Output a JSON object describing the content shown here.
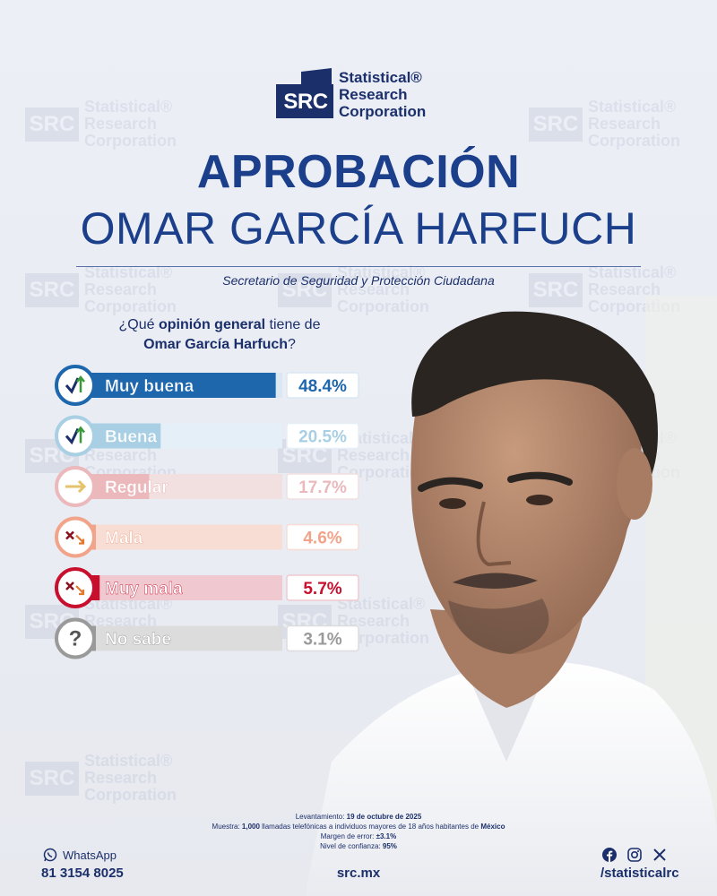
{
  "brand": {
    "mark": "SRC",
    "name_lines": [
      "Statistical®",
      "Research",
      "Corporation"
    ]
  },
  "title": "APROBACIÓN",
  "person_name": "OMAR GARCÍA HARFUCH",
  "subtitle": "Secretario de Seguridad y Protección Ciudadana",
  "question": {
    "pre": "¿Qué ",
    "bold": "opinión general",
    "mid": " tiene de",
    "name": "Omar García Harfuch",
    "post": "?"
  },
  "colors": {
    "navy": "#1b2f6b",
    "title_blue": "#1b3f8a"
  },
  "chart_data": {
    "type": "bar",
    "orientation": "horizontal",
    "title": "¿Qué opinión general tiene de Omar García Harfuch?",
    "categories": [
      "Muy buena",
      "Buena",
      "Regular",
      "Mala",
      "Muy mala",
      "No sabe"
    ],
    "values": [
      48.4,
      20.5,
      17.7,
      4.6,
      5.7,
      3.1
    ],
    "value_labels": [
      "48.4%",
      "20.5%",
      "17.7%",
      "4.6%",
      "5.7%",
      "3.1%"
    ],
    "unit": "%",
    "icons": [
      "check-up-arrow-icon",
      "check-up-arrow-icon",
      "right-arrow-icon",
      "x-down-arrow-icon",
      "x-down-arrow-icon",
      "question-mark-icon"
    ],
    "colors": [
      "#1e67ad",
      "#a9cfe4",
      "#ebb9bc",
      "#f2a48a",
      "#c8102e",
      "#9a9a9a"
    ],
    "track_colors": [
      "#dbe8f4",
      "#e5eff7",
      "#f2dfe0",
      "#f7ddd3",
      "#f0c9d0",
      "#dcdcdc"
    ],
    "value_text_colors": [
      "#1e67ad",
      "#a9cfe4",
      "#ebb9bc",
      "#f2a48a",
      "#c8102e",
      "#9a9a9a"
    ],
    "xlim": [
      0,
      50
    ]
  },
  "footer": {
    "levantamiento_label": "Levantamiento:",
    "levantamiento": "19 de octubre de 2025",
    "muestra_label": "Muestra:",
    "muestra": "1,000",
    "muestra_text": "llamadas telefónicas a individuos mayores de 18 años habitantes de",
    "muestra_place": "México",
    "margen_label": "Margen de error:",
    "margen": "±3.1%",
    "confianza_label": "Nivel de confianza:",
    "confianza": "95%",
    "whatsapp_label": "WhatsApp",
    "phone": "81 3154 8025",
    "website": "src.mx",
    "social_handle": "/statisticalrc",
    "social_icons": [
      "facebook-icon",
      "instagram-icon",
      "x-icon"
    ]
  }
}
